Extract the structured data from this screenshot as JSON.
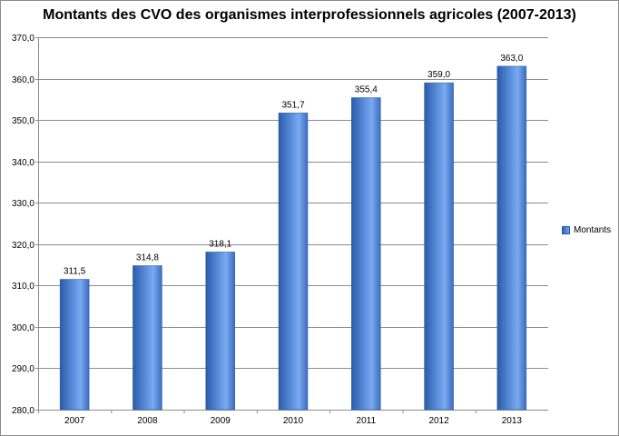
{
  "chart_data": {
    "type": "bar",
    "title": "Montants des CVO des organismes interprofessionnels agricoles (2007-2013)",
    "categories": [
      "2007",
      "2008",
      "2009",
      "2010",
      "2011",
      "2012",
      "2013"
    ],
    "series": [
      {
        "name": "Montants",
        "values": [
          311.5,
          314.8,
          318.1,
          351.7,
          355.4,
          359.0,
          363.0
        ]
      }
    ],
    "data_labels": [
      "311,5",
      "314,8",
      "318,1",
      "351,7",
      "355,4",
      "359,0",
      "363,0"
    ],
    "ylim": [
      280,
      370
    ],
    "y_ticks": [
      "280,0",
      "290,0",
      "300,0",
      "310,0",
      "320,0",
      "330,0",
      "340,0",
      "350,0",
      "360,0",
      "370,0"
    ],
    "grid": true,
    "legend_position": "right",
    "colors": {
      "bar_dark": "#2a5ba8",
      "bar_light": "#7aaaf0",
      "grid": "#8c8c8c"
    }
  }
}
